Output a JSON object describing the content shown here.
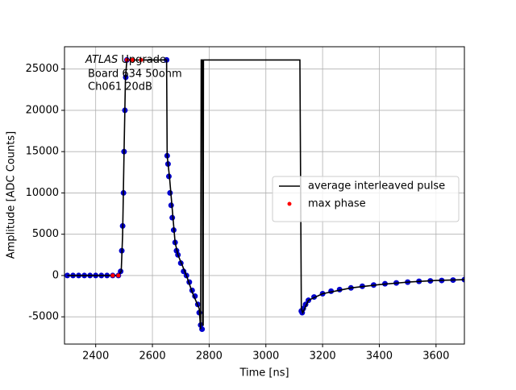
{
  "chart_data": {
    "type": "line",
    "xlabel": "Time [ns]",
    "ylabel": "Amplitude [ADC Counts]",
    "annotation": {
      "italic": "ATLAS",
      "rest": " Upgrade",
      "lines": [
        "Board 634 50ohm",
        "Ch061 20dB"
      ]
    },
    "xlim": [
      2290,
      3700
    ],
    "ylim": [
      -8300,
      27700
    ],
    "xticks": [
      2400,
      2600,
      2800,
      3000,
      3200,
      3400,
      3600
    ],
    "yticks": [
      -5000,
      0,
      5000,
      10000,
      15000,
      20000,
      25000
    ],
    "grid": true,
    "legend": "center right",
    "series": [
      {
        "color": "#0000cd",
        "kind": "scatter",
        "x": [
          2300,
          2320,
          2340,
          2360,
          2380,
          2400,
          2420,
          2440,
          2460,
          2480,
          2488,
          2492,
          2495,
          2498,
          2500,
          2503,
          2506,
          2510,
          2650,
          2652,
          2655,
          2658,
          2662,
          2666,
          2670,
          2675,
          2680,
          2685,
          2690,
          2700,
          2710,
          2720,
          2730,
          2740,
          2750,
          2760,
          2765,
          2770,
          2775,
          3125,
          3128,
          3132,
          3140,
          3150,
          3170,
          3200,
          3230,
          3260,
          3300,
          3340,
          3380,
          3420,
          3460,
          3500,
          3540,
          3580,
          3620,
          3660,
          3700
        ],
        "y": [
          0,
          0,
          0,
          0,
          0,
          0,
          0,
          0,
          0,
          0,
          500,
          3000,
          6000,
          10000,
          15000,
          20000,
          24000,
          26100,
          26100,
          14500,
          13500,
          12000,
          10000,
          8500,
          7000,
          5500,
          4000,
          3000,
          2500,
          1500,
          500,
          0,
          -800,
          -1800,
          -2500,
          -3500,
          -4500,
          -6000,
          -6500,
          -4300,
          -4500,
          -4000,
          -3500,
          -3000,
          -2600,
          -2200,
          -1900,
          -1700,
          -1500,
          -1300,
          -1150,
          -1000,
          -900,
          -800,
          -700,
          -650,
          -600,
          -550,
          -500
        ]
      },
      {
        "name": "average interleaved pulse",
        "color": "#000000",
        "kind": "line",
        "x": [
          2300,
          2480,
          2490,
          2495,
          2500,
          2505,
          2510,
          2650,
          2652,
          2660,
          2670,
          2680,
          2690,
          2720,
          2740,
          2765,
          2770,
          2772,
          2776,
          2777,
          2779,
          2780,
          3120,
          3125,
          3130,
          3150,
          3200,
          3300,
          3400,
          3500,
          3600,
          3700
        ],
        "y": [
          0,
          0,
          500,
          5000,
          15000,
          24000,
          26100,
          26100,
          14500,
          12000,
          8000,
          4000,
          2500,
          0,
          -2000,
          -4000,
          -6500,
          26100,
          26100,
          -6000,
          -6000,
          26100,
          26100,
          -4000,
          -4500,
          -3000,
          -2200,
          -1500,
          -1100,
          -800,
          -600,
          -500
        ]
      },
      {
        "name": "max phase",
        "color": "#ff0000",
        "kind": "scatter",
        "x": [
          2460,
          2480,
          2510,
          2530,
          2560
        ],
        "y": [
          0,
          0,
          26100,
          26100,
          26100
        ]
      }
    ]
  }
}
